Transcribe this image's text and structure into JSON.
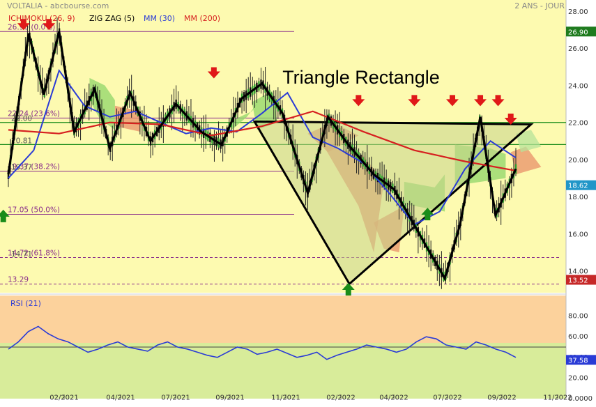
{
  "header": {
    "source": "VOLTALIA - abcbourse.com",
    "period": "2 ANS - JOUR"
  },
  "legend": [
    {
      "label": "ICHIMOKU (26, 9)",
      "color": "#d62020"
    },
    {
      "label": "ZIG ZAG (5)",
      "color": "#000000"
    },
    {
      "label": "MM (30)",
      "color": "#2a3bd6"
    },
    {
      "label": "MM (200)",
      "color": "#d62020"
    }
  ],
  "colors": {
    "background": "#fdfab0",
    "rsi_high": "#fcd29c",
    "rsi_low": "#d8ec9a",
    "ma30": "#2a3bd6",
    "ma200": "#d62020",
    "fib": "#8b2f8b",
    "green_line": "#1a8c1a",
    "triangle_fill": "#c7d48c",
    "cloud_bull": "#8fd66a",
    "cloud_bear": "#e8906a",
    "badge_price": "#1e7b1e",
    "badge_last": "#2196c8",
    "badge_low": "#c62828"
  },
  "annotation": "Triangle Rectangle",
  "chart_data": {
    "type": "line",
    "title": "",
    "x_ticks": [
      "02/2021",
      "04/2021",
      "07/2021",
      "09/2021",
      "11/2021",
      "02/2022",
      "04/2022",
      "07/2022",
      "09/2022",
      "11/2022"
    ],
    "y_ticks": [
      "28.00",
      "26.00",
      "24.00",
      "22.00",
      "20.00",
      "18.00",
      "16.00",
      "14.00"
    ],
    "ylim": [
      12.9,
      28.3
    ],
    "fib_levels": [
      {
        "label": "26.90 (0.0%)",
        "value": 26.9
      },
      {
        "label": "22.24 (23.6%)",
        "value": 22.24
      },
      {
        "label": "19.37 (38.2%)",
        "value": 19.37
      },
      {
        "label": "17.05 (50.0%)",
        "value": 17.05
      },
      {
        "label": "14.72 (61.8%)",
        "value": 14.72
      },
      {
        "label": "13.29",
        "value": 13.29
      }
    ],
    "green_levels": [
      22.0,
      20.81
    ],
    "overlay_labels": [
      "22.00",
      "20.81",
      "19.37",
      "14.71"
    ],
    "price_badges": [
      {
        "label": "26.90",
        "value": 26.9,
        "kind": "price"
      },
      {
        "label": "18.62",
        "value": 18.62,
        "kind": "last"
      },
      {
        "label": "13.52",
        "value": 13.52,
        "kind": "low"
      }
    ],
    "zigzag": [
      {
        "x": 0.0,
        "y": 19.2
      },
      {
        "x": 0.04,
        "y": 26.8
      },
      {
        "x": 0.07,
        "y": 23.5
      },
      {
        "x": 0.1,
        "y": 26.9
      },
      {
        "x": 0.13,
        "y": 21.5
      },
      {
        "x": 0.17,
        "y": 23.8
      },
      {
        "x": 0.2,
        "y": 20.6
      },
      {
        "x": 0.24,
        "y": 23.6
      },
      {
        "x": 0.28,
        "y": 21.0
      },
      {
        "x": 0.33,
        "y": 23.0
      },
      {
        "x": 0.38,
        "y": 21.5
      },
      {
        "x": 0.42,
        "y": 20.8
      },
      {
        "x": 0.46,
        "y": 23.3
      },
      {
        "x": 0.5,
        "y": 24.1
      },
      {
        "x": 0.54,
        "y": 22.5
      },
      {
        "x": 0.59,
        "y": 18.2
      },
      {
        "x": 0.63,
        "y": 22.3
      },
      {
        "x": 0.67,
        "y": 20.8
      },
      {
        "x": 0.72,
        "y": 19.2
      },
      {
        "x": 0.76,
        "y": 18.4
      },
      {
        "x": 0.82,
        "y": 15.5
      },
      {
        "x": 0.86,
        "y": 13.6
      },
      {
        "x": 0.89,
        "y": 16.5
      },
      {
        "x": 0.93,
        "y": 22.3
      },
      {
        "x": 0.96,
        "y": 17.0
      },
      {
        "x": 1.0,
        "y": 19.5
      }
    ],
    "series": [
      {
        "name": "MM (30)",
        "x": [
          0.0,
          0.05,
          0.1,
          0.15,
          0.2,
          0.25,
          0.3,
          0.35,
          0.4,
          0.45,
          0.5,
          0.55,
          0.6,
          0.65,
          0.7,
          0.75,
          0.8,
          0.85,
          0.9,
          0.95,
          1.0
        ],
        "y": [
          19.0,
          20.5,
          24.8,
          22.9,
          22.3,
          22.6,
          22.0,
          21.4,
          21.7,
          21.5,
          22.5,
          23.6,
          21.2,
          20.6,
          19.8,
          18.2,
          16.5,
          17.2,
          19.5,
          21.0,
          20.1
        ]
      },
      {
        "name": "MM (200)",
        "x": [
          0.0,
          0.1,
          0.2,
          0.3,
          0.4,
          0.5,
          0.6,
          0.7,
          0.8,
          0.9,
          1.0
        ],
        "y": [
          21.6,
          21.4,
          22.0,
          21.9,
          21.3,
          21.8,
          22.6,
          21.5,
          20.5,
          19.9,
          19.4
        ]
      }
    ],
    "triangle": {
      "top_left": {
        "label": "11/2021",
        "y": 22.05
      },
      "apex": {
        "label": "02/2022",
        "y": 13.3
      },
      "top_right": {
        "label": "10/2022",
        "y": 21.9
      }
    },
    "arrows_down": [
      "01/2021",
      "01/2021",
      "09/2021",
      "03/2022",
      "06/2022",
      "07/2022",
      "08/2022",
      "08/2022",
      "09/2022"
    ],
    "arrows_up": [
      "06/2022",
      "02/2022",
      "12/2020"
    ],
    "rsi": {
      "label": "RSI (21)",
      "y_ticks": [
        "80.00",
        "60.00",
        "40.00",
        "20.00",
        "0.0000"
      ],
      "ylim": [
        0,
        100
      ],
      "threshold": 50,
      "last": "37.58",
      "values": [
        48,
        55,
        65,
        70,
        63,
        58,
        55,
        50,
        45,
        48,
        52,
        55,
        50,
        48,
        46,
        52,
        55,
        50,
        48,
        45,
        42,
        40,
        45,
        50,
        48,
        43,
        45,
        48,
        44,
        40,
        42,
        45,
        38,
        42,
        45,
        48,
        52,
        50,
        48,
        45,
        48,
        55,
        60,
        58,
        52,
        50,
        48,
        55,
        52,
        48,
        45,
        40
      ]
    }
  }
}
